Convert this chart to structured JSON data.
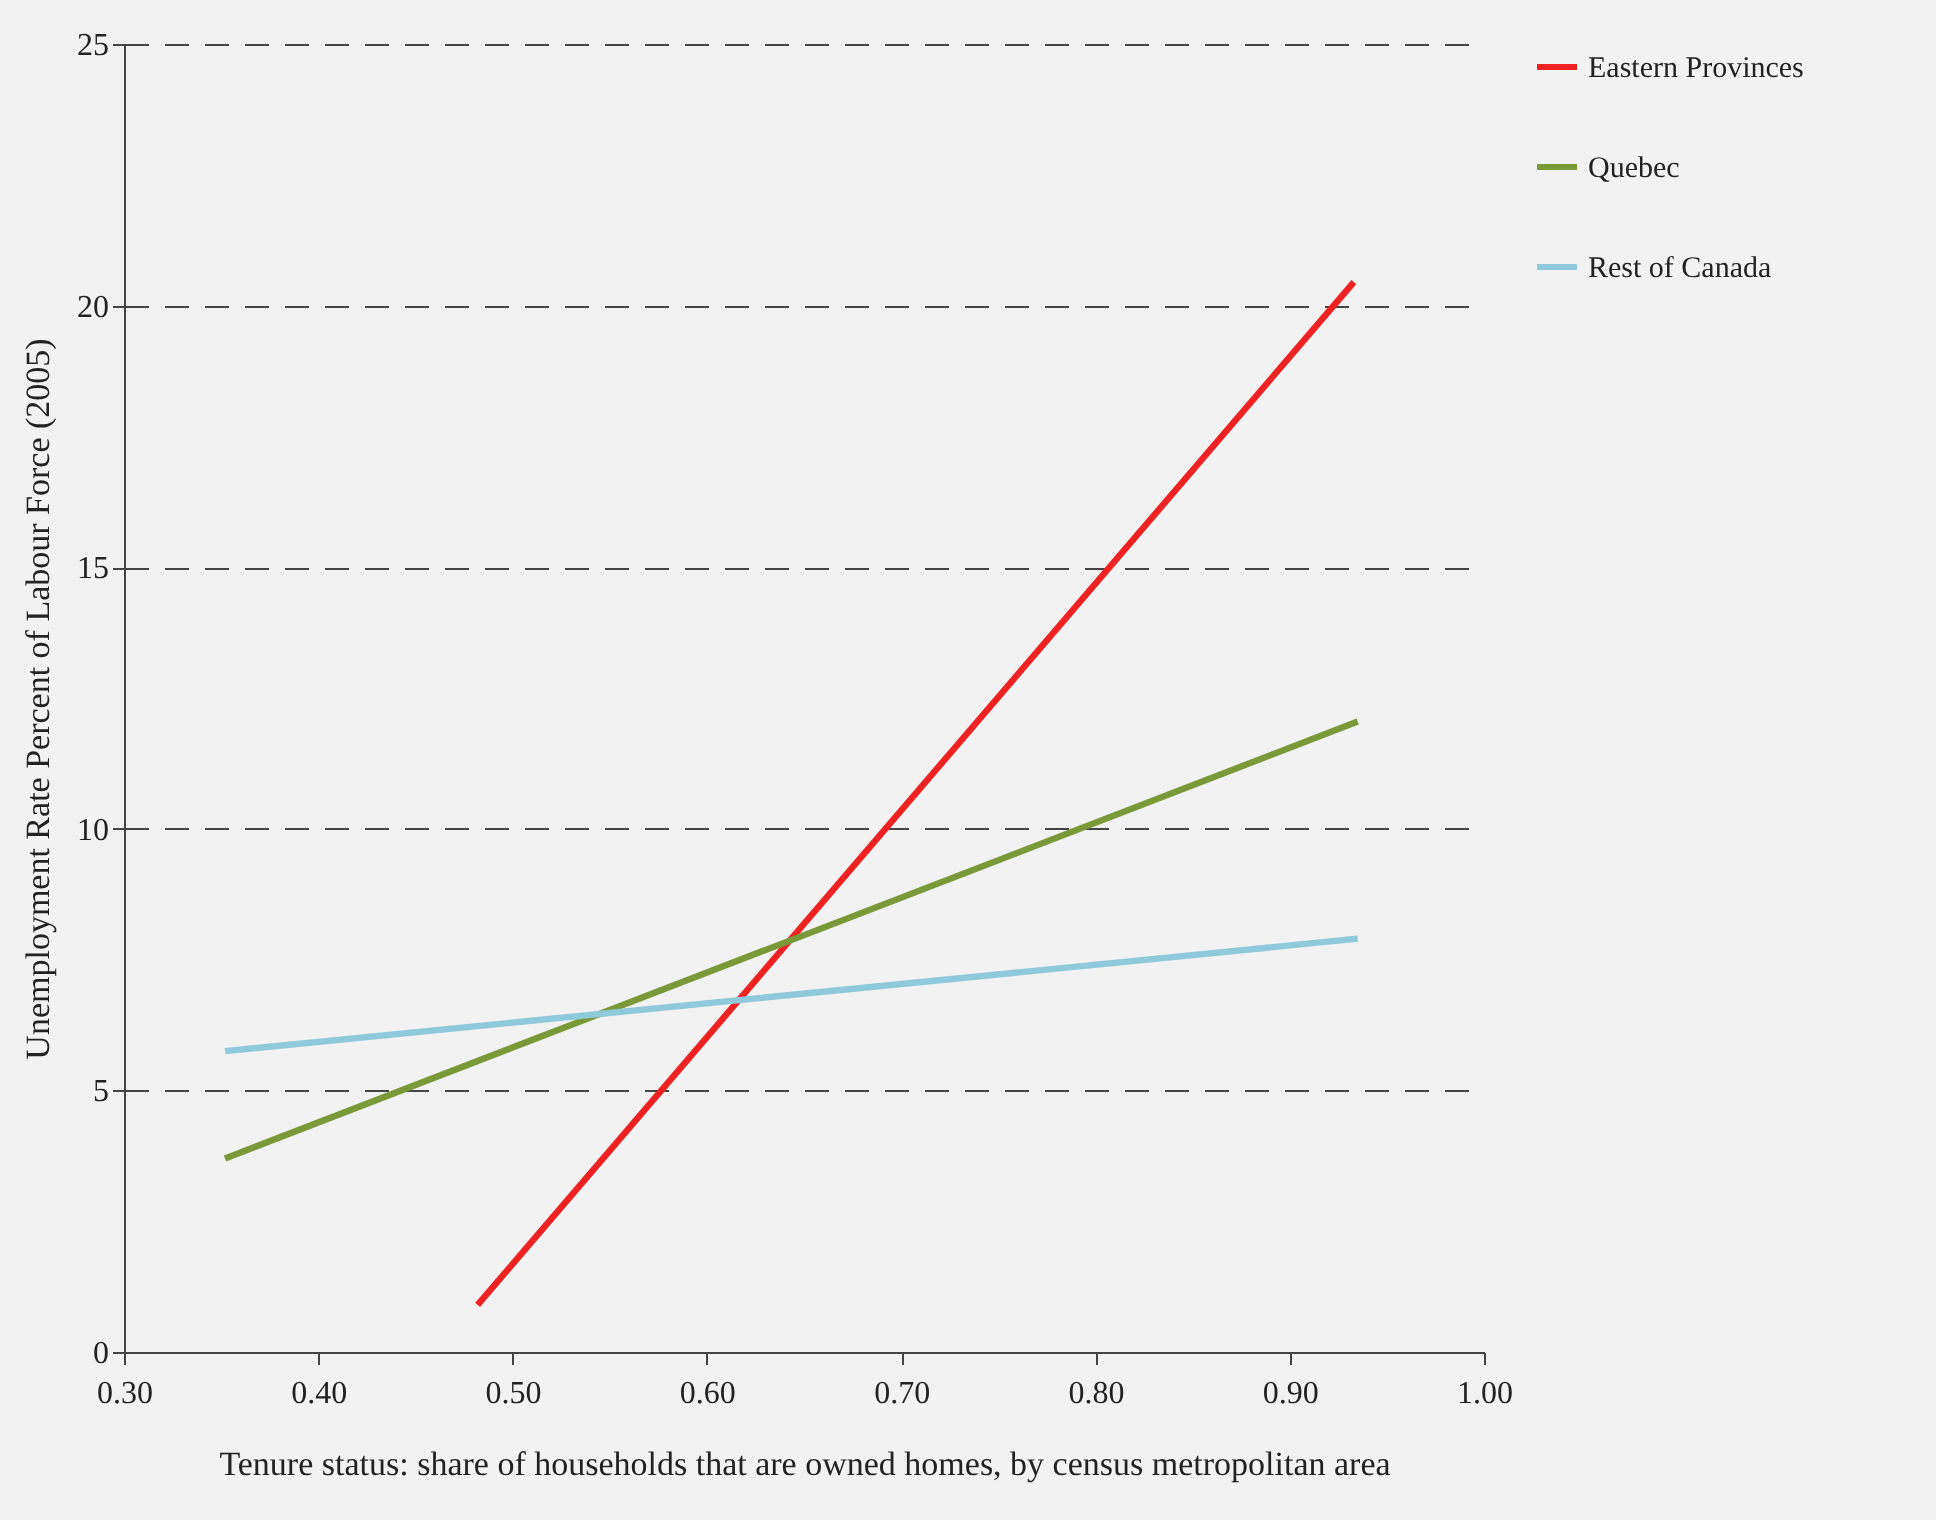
{
  "chart_data": {
    "type": "line",
    "xlabel": "Tenure status: share of households that are owned homes, by census metropolitan area",
    "ylabel": "Unemployment Rate  Percent of Labour Force (2005)",
    "series": [
      {
        "name": "Eastern Provinces",
        "color": "#ee2222",
        "x": [
          0.482,
          0.933
        ],
        "values": [
          0.9,
          20.45
        ]
      },
      {
        "name": "Quebec",
        "color": "#7a9a3a",
        "x": [
          0.352,
          0.935
        ],
        "values": [
          3.7,
          12.05
        ]
      },
      {
        "name": "Rest of Canada",
        "color": "#8ecadb",
        "x": [
          0.352,
          0.935
        ],
        "values": [
          5.75,
          7.9
        ]
      }
    ],
    "xlim": [
      0.3,
      1.0
    ],
    "ylim": [
      0,
      25
    ],
    "xticks": [
      {
        "value": 0.3,
        "label": "0.30"
      },
      {
        "value": 0.4,
        "label": "0.40"
      },
      {
        "value": 0.5,
        "label": "0.50"
      },
      {
        "value": 0.6,
        "label": "0.60"
      },
      {
        "value": 0.7,
        "label": "0.70"
      },
      {
        "value": 0.8,
        "label": "0.80"
      },
      {
        "value": 0.9,
        "label": "0.90"
      },
      {
        "value": 1.0,
        "label": "1.00"
      }
    ],
    "yticks": [
      0,
      5,
      10,
      15,
      20,
      25
    ],
    "grid": "y",
    "legend": "right",
    "line_style": "solid"
  }
}
